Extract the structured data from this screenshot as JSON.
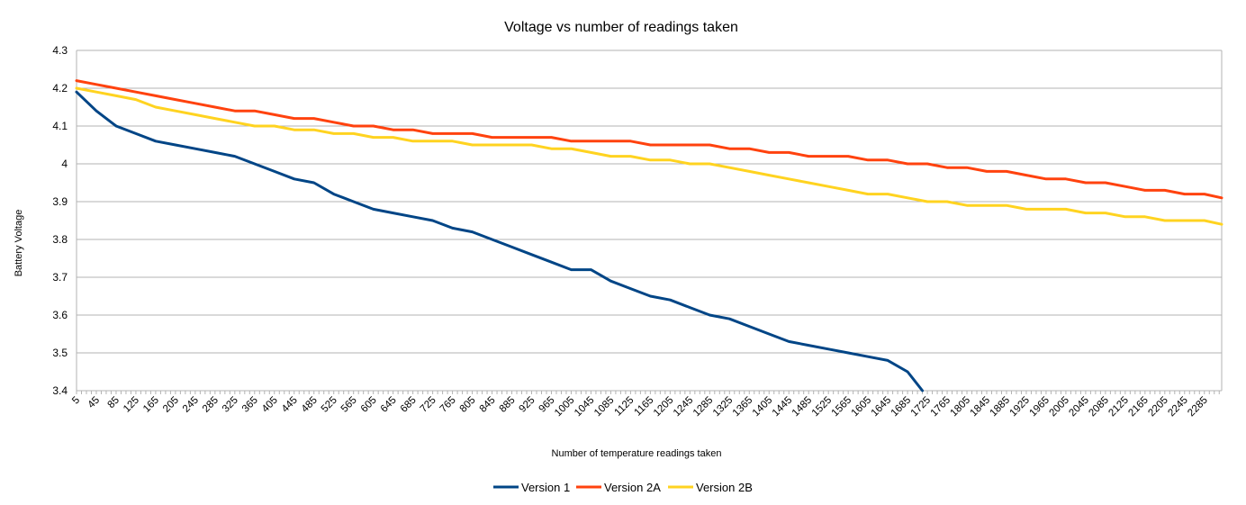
{
  "chart_data": {
    "type": "line",
    "title": "Voltage vs number of readings taken",
    "xlabel": "Number of temperature readings taken",
    "ylabel": "Battery Voltage",
    "ylim": [
      3.4,
      4.3
    ],
    "yticks": [
      3.4,
      3.5,
      3.6,
      3.7,
      3.8,
      3.9,
      4,
      4.1,
      4.2,
      4.3
    ],
    "ytick_labels": [
      "3.4",
      "3.5",
      "3.6",
      "3.7",
      "3.8",
      "3.9",
      "4",
      "4.1",
      "4.2",
      "4.3"
    ],
    "xlim": [
      5,
      2320
    ],
    "x_tick_labels": [
      "5",
      "45",
      "85",
      "125",
      "165",
      "205",
      "245",
      "285",
      "325",
      "365",
      "405",
      "445",
      "485",
      "525",
      "565",
      "605",
      "645",
      "685",
      "725",
      "765",
      "805",
      "845",
      "885",
      "925",
      "965",
      "1005",
      "1045",
      "1085",
      "1125",
      "1165",
      "1205",
      "1245",
      "1285",
      "1325",
      "1365",
      "1405",
      "1445",
      "1485",
      "1525",
      "1565",
      "1605",
      "1645",
      "1685",
      "1725",
      "1765",
      "1805",
      "1845",
      "1885",
      "1925",
      "1965",
      "2005",
      "2045",
      "2085",
      "2125",
      "2165",
      "2205",
      "2245",
      "2285"
    ],
    "grid": "horizontal",
    "legend_position": "bottom",
    "series": [
      {
        "name": "Version 1",
        "color": "#004586",
        "x": [
          5,
          45,
          85,
          125,
          165,
          205,
          245,
          285,
          325,
          365,
          405,
          445,
          485,
          525,
          565,
          605,
          645,
          685,
          725,
          765,
          805,
          845,
          885,
          925,
          965,
          1005,
          1045,
          1085,
          1125,
          1165,
          1205,
          1245,
          1285,
          1325,
          1365,
          1405,
          1445,
          1485,
          1525,
          1565,
          1605,
          1645,
          1685,
          1715
        ],
        "y": [
          4.19,
          4.14,
          4.1,
          4.08,
          4.06,
          4.05,
          4.04,
          4.03,
          4.02,
          4.0,
          3.98,
          3.96,
          3.95,
          3.92,
          3.9,
          3.88,
          3.87,
          3.86,
          3.85,
          3.83,
          3.82,
          3.8,
          3.78,
          3.76,
          3.74,
          3.72,
          3.72,
          3.69,
          3.67,
          3.65,
          3.64,
          3.62,
          3.6,
          3.59,
          3.57,
          3.55,
          3.53,
          3.52,
          3.51,
          3.5,
          3.49,
          3.48,
          3.45,
          3.4
        ]
      },
      {
        "name": "Version 2A",
        "color": "#ff420e",
        "x": [
          5,
          45,
          85,
          125,
          165,
          205,
          245,
          285,
          325,
          365,
          405,
          445,
          485,
          525,
          565,
          605,
          645,
          685,
          725,
          765,
          805,
          845,
          885,
          925,
          965,
          1005,
          1045,
          1085,
          1125,
          1165,
          1205,
          1245,
          1285,
          1325,
          1365,
          1405,
          1445,
          1485,
          1525,
          1565,
          1605,
          1645,
          1685,
          1725,
          1765,
          1805,
          1845,
          1885,
          1925,
          1965,
          2005,
          2045,
          2085,
          2125,
          2165,
          2205,
          2245,
          2285,
          2320
        ],
        "y": [
          4.22,
          4.21,
          4.2,
          4.19,
          4.18,
          4.17,
          4.16,
          4.15,
          4.14,
          4.14,
          4.13,
          4.12,
          4.12,
          4.11,
          4.1,
          4.1,
          4.09,
          4.09,
          4.08,
          4.08,
          4.08,
          4.07,
          4.07,
          4.07,
          4.07,
          4.06,
          4.06,
          4.06,
          4.06,
          4.05,
          4.05,
          4.05,
          4.05,
          4.04,
          4.04,
          4.03,
          4.03,
          4.02,
          4.02,
          4.02,
          4.01,
          4.01,
          4.0,
          4.0,
          3.99,
          3.99,
          3.98,
          3.98,
          3.97,
          3.96,
          3.96,
          3.95,
          3.95,
          3.94,
          3.93,
          3.93,
          3.92,
          3.92,
          3.91
        ]
      },
      {
        "name": "Version 2B",
        "color": "#ffd320",
        "x": [
          5,
          45,
          85,
          125,
          165,
          205,
          245,
          285,
          325,
          365,
          405,
          445,
          485,
          525,
          565,
          605,
          645,
          685,
          725,
          765,
          805,
          845,
          885,
          925,
          965,
          1005,
          1045,
          1085,
          1125,
          1165,
          1205,
          1245,
          1285,
          1325,
          1365,
          1405,
          1445,
          1485,
          1525,
          1565,
          1605,
          1645,
          1685,
          1725,
          1765,
          1805,
          1845,
          1885,
          1925,
          1965,
          2005,
          2045,
          2085,
          2125,
          2165,
          2205,
          2245,
          2285,
          2320
        ],
        "y": [
          4.2,
          4.19,
          4.18,
          4.17,
          4.15,
          4.14,
          4.13,
          4.12,
          4.11,
          4.1,
          4.1,
          4.09,
          4.09,
          4.08,
          4.08,
          4.07,
          4.07,
          4.06,
          4.06,
          4.06,
          4.05,
          4.05,
          4.05,
          4.05,
          4.04,
          4.04,
          4.03,
          4.02,
          4.02,
          4.01,
          4.01,
          4.0,
          4.0,
          3.99,
          3.98,
          3.97,
          3.96,
          3.95,
          3.94,
          3.93,
          3.92,
          3.92,
          3.91,
          3.9,
          3.9,
          3.89,
          3.89,
          3.89,
          3.88,
          3.88,
          3.88,
          3.87,
          3.87,
          3.86,
          3.86,
          3.85,
          3.85,
          3.85,
          3.84
        ]
      }
    ]
  }
}
